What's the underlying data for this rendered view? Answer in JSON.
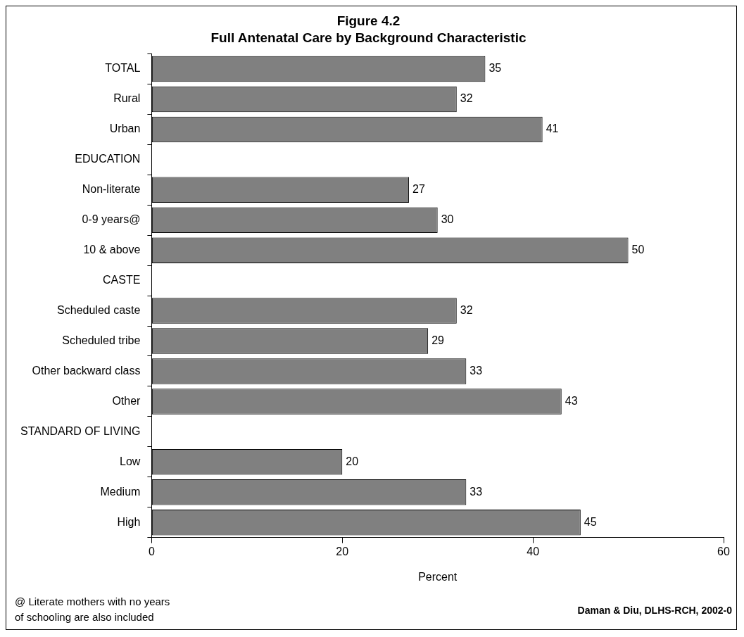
{
  "chart_data": {
    "type": "bar",
    "orientation": "horizontal",
    "title": "Figure 4.2",
    "subtitle": "Full Antenatal Care by Background Characteristic",
    "xlabel": "Percent",
    "categories": [
      "TOTAL",
      "Rural",
      "Urban",
      "EDUCATION",
      "Non-literate",
      "0-9 years@",
      "10 & above",
      "CASTE",
      "Scheduled caste",
      "Scheduled tribe",
      "Other backward class",
      "Other",
      "STANDARD OF LIVING",
      "Low",
      "Medium",
      "High"
    ],
    "values": [
      35,
      32,
      41,
      null,
      27,
      30,
      50,
      null,
      32,
      29,
      33,
      43,
      null,
      20,
      33,
      45
    ],
    "color": "#808080",
    "data_labels": true,
    "xlim": [
      0,
      60
    ],
    "xticks": [
      0,
      20,
      40,
      60
    ],
    "grid": false,
    "legend": false,
    "annotations": [
      "@ Literate mothers with no years of schooling are also included",
      "Daman & Diu, DLHS-RCH, 2002-0"
    ]
  }
}
